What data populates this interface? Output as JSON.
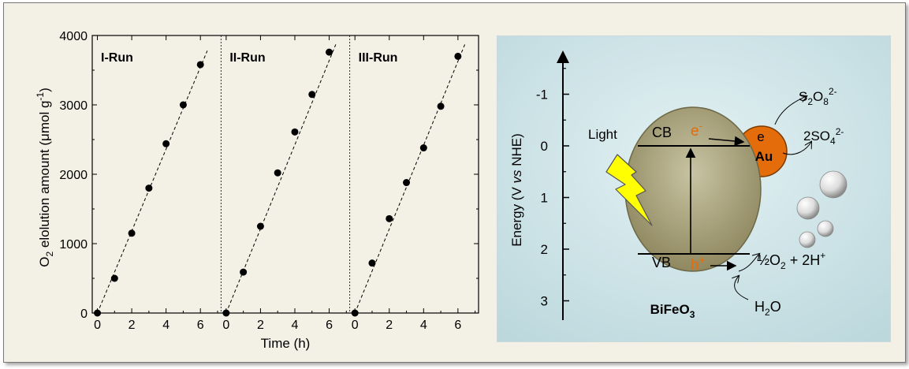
{
  "chart_data": {
    "type": "scatter",
    "ylabel_main": "O",
    "ylabel_sub": "2",
    "ylabel_text": " elolution amount (μmol g",
    "ylabel_sup": "-1",
    "ylabel_close": ")",
    "xlabel": "Time (h)",
    "ylim": [
      0,
      4000
    ],
    "yticks": [
      "0",
      "1000",
      "2000",
      "3000",
      "4000"
    ],
    "xlim": [
      -0.3,
      7.2
    ],
    "xticks": [
      "0",
      "2",
      "4",
      "6"
    ],
    "fit_lines": "dashed",
    "panels": [
      {
        "name": "I-Run",
        "x": [
          0,
          1,
          2,
          3,
          4,
          5,
          6
        ],
        "y": [
          0,
          500,
          1150,
          1800,
          2440,
          3000,
          3580
        ],
        "fit": [
          [
            0,
            0
          ],
          [
            6.4,
            3780
          ]
        ]
      },
      {
        "name": "II-Run",
        "x": [
          0,
          1,
          2,
          3,
          4,
          5,
          6
        ],
        "y": [
          0,
          590,
          1250,
          2020,
          2610,
          3150,
          3760
        ],
        "fit": [
          [
            0,
            0
          ],
          [
            6.4,
            3880
          ]
        ]
      },
      {
        "name": "III-Run",
        "x": [
          0,
          1,
          2,
          3,
          4,
          5,
          6
        ],
        "y": [
          0,
          720,
          1360,
          1880,
          2380,
          2980,
          3700
        ],
        "fit": [
          [
            0,
            0
          ],
          [
            6.4,
            3870
          ]
        ]
      }
    ]
  },
  "diagram": {
    "axis_label": "Energy (V ",
    "axis_label_italic": "vs",
    "axis_label_end": " NHE)",
    "energy_ticks": [
      "-1",
      "0",
      "1",
      "2",
      "3"
    ],
    "energy_values": [
      -1,
      0,
      1,
      2,
      3
    ],
    "light_label": "Light",
    "cb_label": "CB",
    "vb_label": "VB",
    "electron_label": "e",
    "electron_sup": "-",
    "hole_label": "h",
    "hole_sup": "+",
    "au_e_label": "e",
    "au_label": "Au",
    "material_label": "BiFeO",
    "material_sub": "3",
    "s2o8": {
      "a": "S",
      "b": "2",
      "c": "O",
      "d": "8",
      "e": "2-"
    },
    "so4": {
      "a": "2SO",
      "b": "4",
      "c": "2-"
    },
    "o2_product": {
      "a": "½O",
      "b": "2",
      "c": " + 2H",
      "d": "+"
    },
    "h2o": {
      "a": "H",
      "b": "2",
      "c": "O"
    },
    "colors": {
      "ellipse_fill": "#a9a27a",
      "au_fill": "#e46c0a",
      "bolt_fill": "#ffff00",
      "background": "#d3e7ea",
      "carrier_label": "#e46c0a"
    }
  }
}
